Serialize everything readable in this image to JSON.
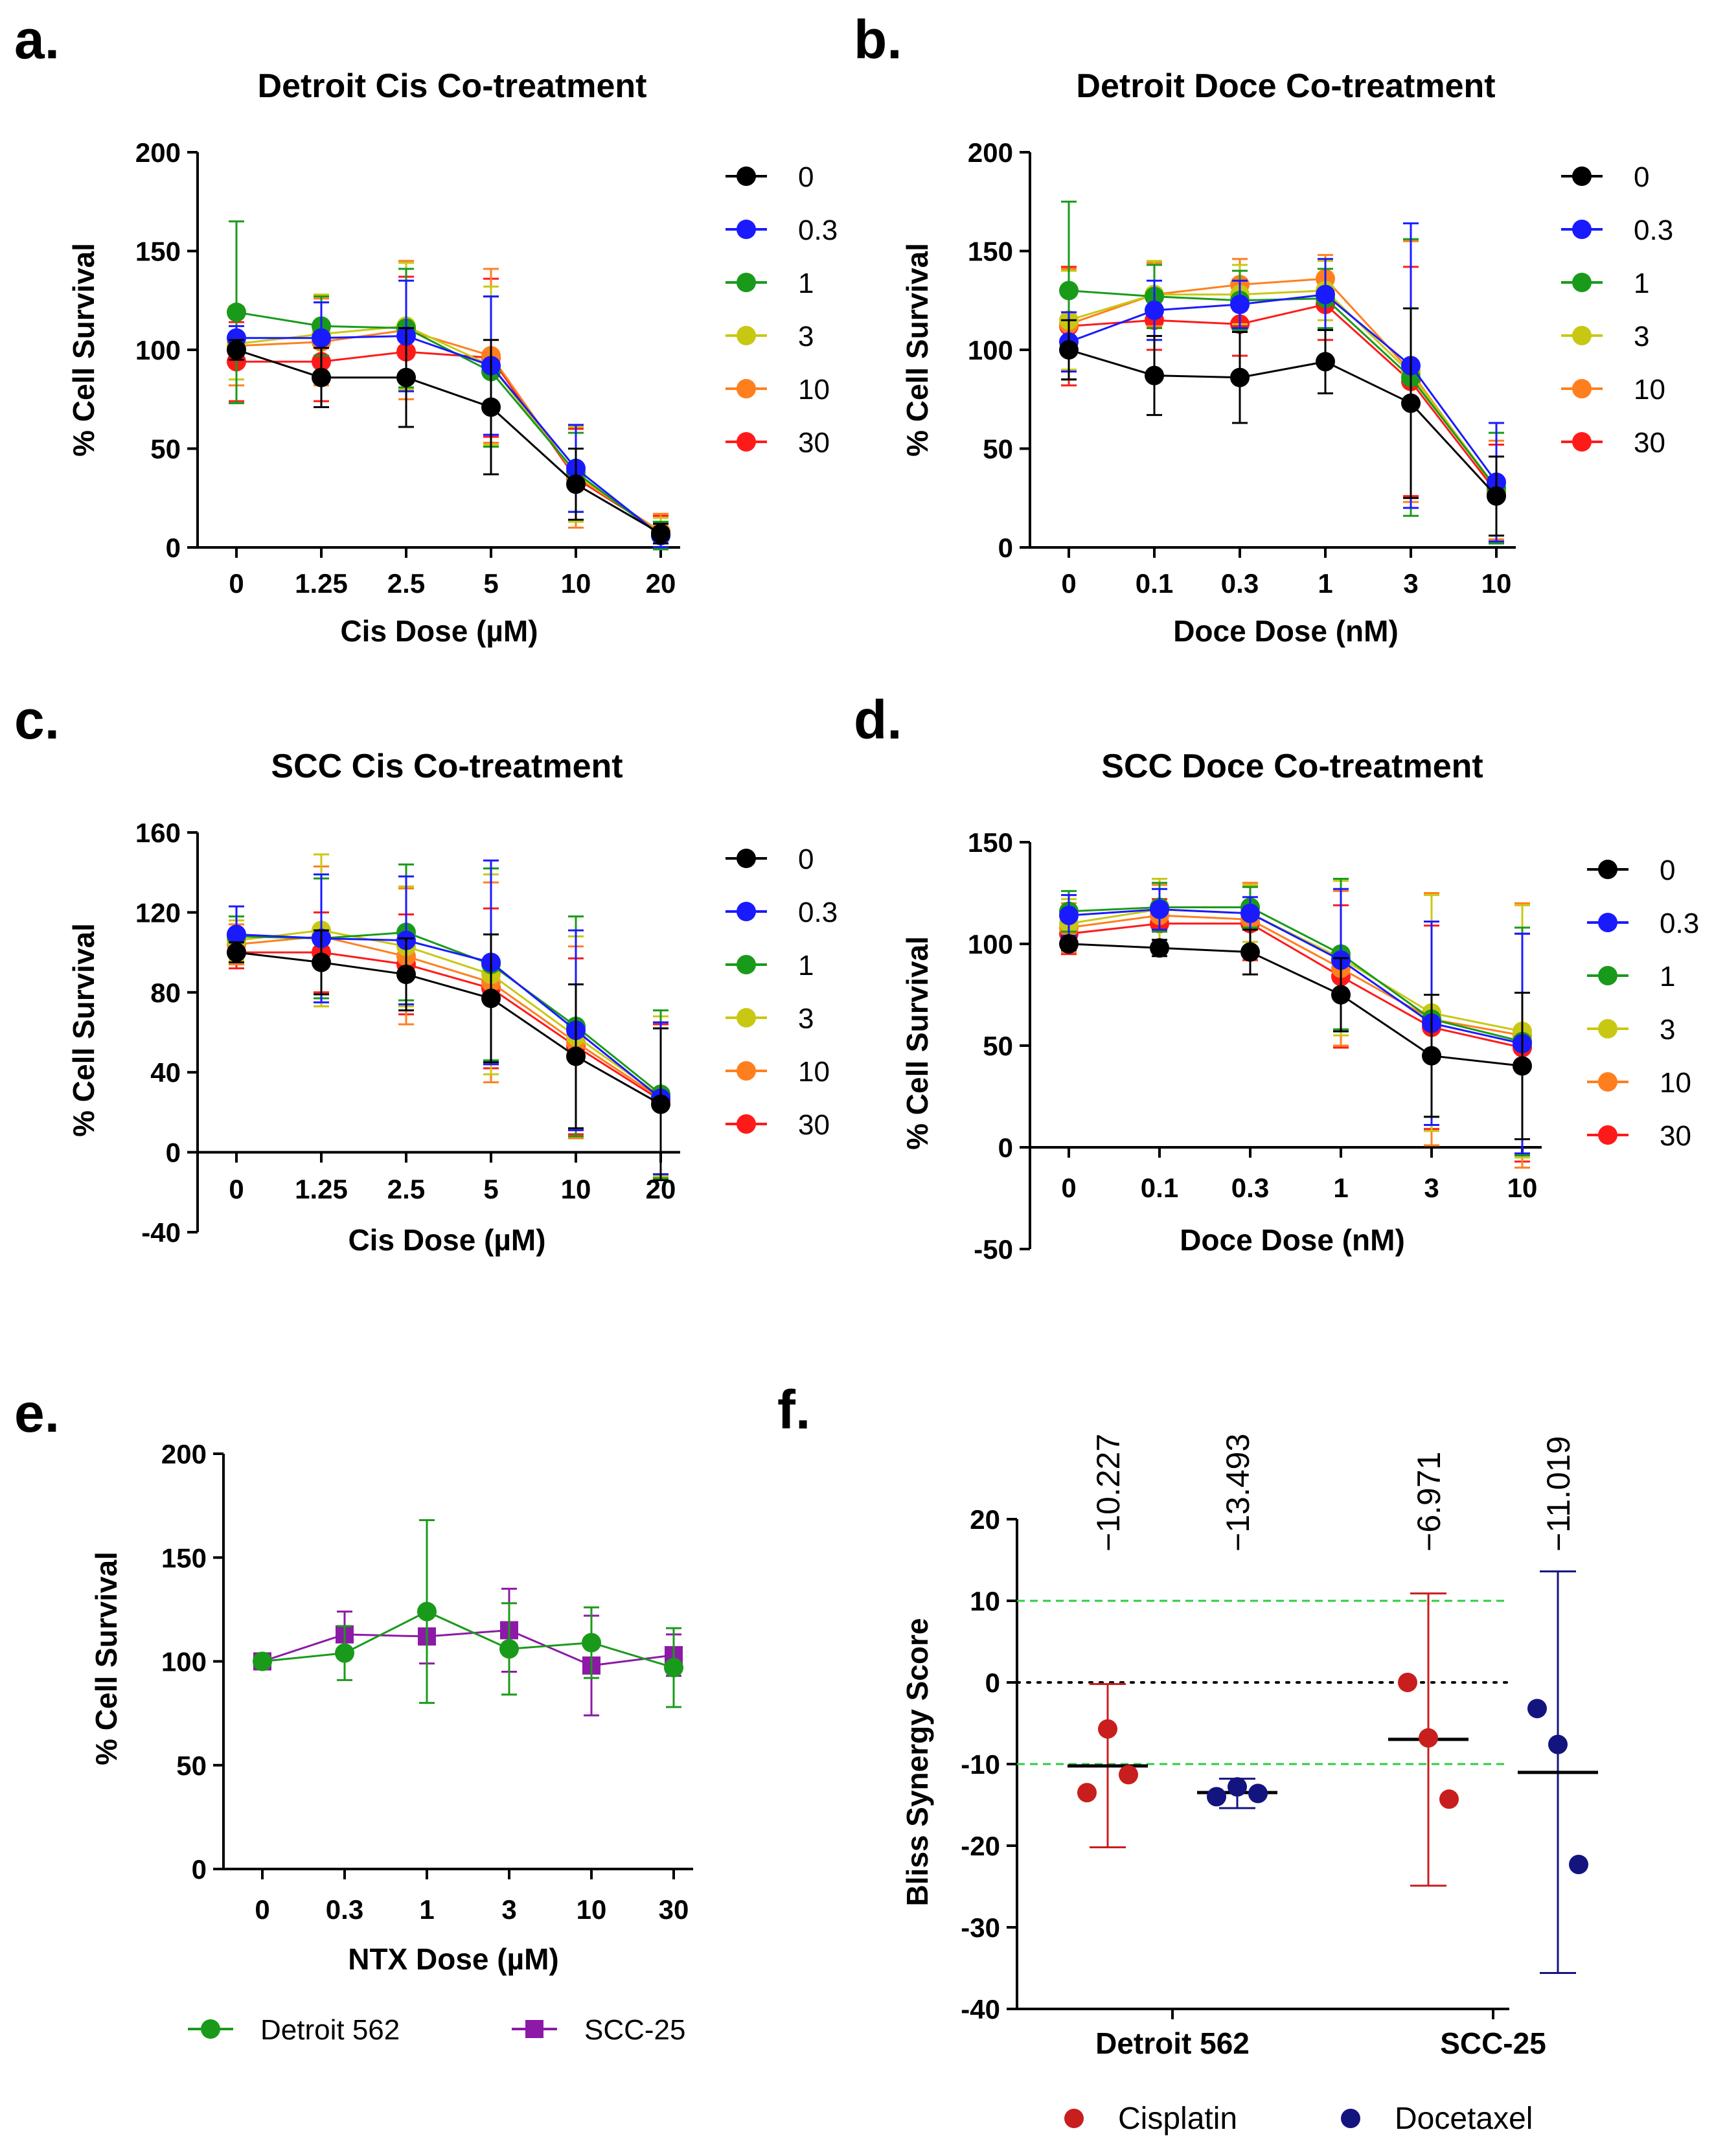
{
  "colors": {
    "0": "#000000",
    "0.3": "#1a1aff",
    "1": "#1a9a1a",
    "3": "#c8c814",
    "10": "#ff7f1e",
    "30": "#ff1a1a",
    "detroit": "#1a9a1a",
    "scc": "#8c1aa6",
    "cisplatin": "#c81e1e",
    "docetaxel": "#14147f",
    "threshold": "#2ecc40"
  },
  "panels": {
    "a": {
      "label": "a."
    },
    "b": {
      "label": "b."
    },
    "c": {
      "label": "c."
    },
    "d": {
      "label": "d."
    },
    "e": {
      "label": "e."
    },
    "f": {
      "label": "f."
    }
  },
  "chart_data": [
    {
      "panel": "a",
      "type": "line",
      "title": "Detroit Cis Co-treatment",
      "xlabel": "Cis Dose (µM)",
      "ylabel": "% Cell Survival",
      "categories": [
        "0",
        "1.25",
        "2.5",
        "5",
        "10",
        "20"
      ],
      "ylim": [
        0,
        200
      ],
      "yticks": [
        0,
        50,
        100,
        150,
        200
      ],
      "legend": [
        "0",
        "0.3",
        "1",
        "3",
        "10",
        "30"
      ],
      "series": [
        {
          "name": "0",
          "values": [
            100,
            86,
            86,
            71,
            32,
            7
          ],
          "errors": [
            5,
            15,
            25,
            34,
            18,
            5
          ]
        },
        {
          "name": "0.3",
          "values": [
            106,
            106,
            107,
            92,
            40,
            6
          ],
          "errors": [
            6,
            18,
            28,
            35,
            22,
            6
          ]
        },
        {
          "name": "1",
          "values": [
            119,
            112,
            111,
            89,
            38,
            6
          ],
          "errors": [
            46,
            15,
            30,
            38,
            20,
            7
          ]
        },
        {
          "name": "3",
          "values": [
            103,
            108,
            112,
            92,
            37,
            7
          ],
          "errors": [
            18,
            20,
            32,
            40,
            24,
            8
          ]
        },
        {
          "name": "10",
          "values": [
            102,
            104,
            110,
            97,
            36,
            8
          ],
          "errors": [
            20,
            22,
            35,
            44,
            26,
            9
          ]
        },
        {
          "name": "30",
          "values": [
            94,
            94,
            99,
            96,
            35,
            8
          ],
          "errors": [
            20,
            20,
            38,
            40,
            25,
            8
          ]
        }
      ]
    },
    {
      "panel": "b",
      "type": "line",
      "title": "Detroit Doce Co-treatment",
      "xlabel": "Doce Dose (nM)",
      "ylabel": "% Cell Survival",
      "categories": [
        "0",
        "0.1",
        "0.3",
        "1",
        "3",
        "10"
      ],
      "ylim": [
        0,
        200
      ],
      "yticks": [
        0,
        50,
        100,
        150,
        200
      ],
      "legend": [
        "0",
        "0.3",
        "1",
        "3",
        "10",
        "30"
      ],
      "series": [
        {
          "name": "0",
          "values": [
            100,
            87,
            86,
            94,
            73,
            26
          ],
          "errors": [
            15,
            20,
            23,
            16,
            48,
            20
          ]
        },
        {
          "name": "0.3",
          "values": [
            104,
            120,
            123,
            128,
            92,
            33
          ],
          "errors": [
            15,
            15,
            12,
            18,
            72,
            30
          ]
        },
        {
          "name": "1",
          "values": [
            130,
            127,
            125,
            126,
            86,
            30
          ],
          "errors": [
            45,
            16,
            15,
            15,
            70,
            28
          ]
        },
        {
          "name": "3",
          "values": [
            115,
            128,
            128,
            130,
            88,
            30
          ],
          "errors": [
            25,
            17,
            15,
            15,
            68,
            28
          ]
        },
        {
          "name": "10",
          "values": [
            113,
            128,
            133,
            136,
            89,
            29
          ],
          "errors": [
            28,
            16,
            13,
            12,
            66,
            25
          ]
        },
        {
          "name": "30",
          "values": [
            112,
            115,
            113,
            123,
            84,
            28
          ],
          "errors": [
            30,
            15,
            16,
            18,
            58,
            24
          ]
        }
      ]
    },
    {
      "panel": "c",
      "type": "line",
      "title": "SCC Cis Co-treatment",
      "xlabel": "Cis Dose (µM)",
      "ylabel": "% Cell Survival",
      "categories": [
        "0",
        "1.25",
        "2.5",
        "5",
        "10",
        "20"
      ],
      "ylim": [
        -40,
        160
      ],
      "yticks": [
        -40,
        0,
        40,
        80,
        120,
        160
      ],
      "legend": [
        "0",
        "0.3",
        "1",
        "3",
        "10",
        "30"
      ],
      "series": [
        {
          "name": "0",
          "values": [
            100,
            95,
            89,
            77,
            48,
            24
          ],
          "errors": [
            5,
            16,
            18,
            32,
            36,
            38
          ]
        },
        {
          "name": "0.3",
          "values": [
            109,
            107,
            106,
            95,
            61,
            27
          ],
          "errors": [
            14,
            32,
            32,
            51,
            50,
            38
          ]
        },
        {
          "name": "1",
          "values": [
            108,
            107,
            110,
            94,
            63,
            29
          ],
          "errors": [
            10,
            30,
            34,
            48,
            55,
            42
          ]
        },
        {
          "name": "3",
          "values": [
            106,
            111,
            103,
            89,
            58,
            28
          ],
          "errors": [
            10,
            38,
            30,
            50,
            50,
            40
          ]
        },
        {
          "name": "10",
          "values": [
            104,
            108,
            98,
            85,
            55,
            27
          ],
          "errors": [
            10,
            35,
            34,
            50,
            48,
            38
          ]
        },
        {
          "name": "30",
          "values": [
            100,
            100,
            94,
            82,
            53,
            26
          ],
          "errors": [
            8,
            20,
            25,
            40,
            44,
            38
          ]
        }
      ]
    },
    {
      "panel": "d",
      "type": "line",
      "title": "SCC Doce Co-treatment",
      "xlabel": "Doce Dose (nM)",
      "ylabel": "% Cell Survival",
      "categories": [
        "0",
        "0.1",
        "0.3",
        "1",
        "3",
        "10"
      ],
      "ylim": [
        -50,
        150
      ],
      "yticks": [
        -50,
        0,
        50,
        100,
        150
      ],
      "legend": [
        "0",
        "0.3",
        "1",
        "3",
        "10",
        "30"
      ],
      "series": [
        {
          "name": "0",
          "values": [
            100,
            98,
            96,
            75,
            45,
            40
          ],
          "errors": [
            3,
            4,
            11,
            18,
            30,
            36
          ]
        },
        {
          "name": "0.3",
          "values": [
            114,
            117,
            115,
            92,
            61,
            51
          ],
          "errors": [
            10,
            10,
            8,
            35,
            50,
            54
          ]
        },
        {
          "name": "1",
          "values": [
            116,
            118,
            118,
            95,
            63,
            52
          ],
          "errors": [
            10,
            12,
            10,
            37,
            48,
            56
          ]
        },
        {
          "name": "3",
          "values": [
            110,
            117,
            115,
            93,
            66,
            57
          ],
          "errors": [
            12,
            15,
            14,
            38,
            58,
            62
          ]
        },
        {
          "name": "10",
          "values": [
            108,
            114,
            112,
            88,
            63,
            55
          ],
          "errors": [
            12,
            15,
            18,
            38,
            62,
            65
          ]
        },
        {
          "name": "30",
          "values": [
            105,
            110,
            110,
            84,
            59,
            49
          ],
          "errors": [
            10,
            12,
            18,
            35,
            50,
            56
          ]
        }
      ]
    },
    {
      "panel": "e",
      "type": "line",
      "title": "",
      "xlabel": "NTX Dose (µM)",
      "ylabel": "% Cell Survival",
      "categories": [
        "0",
        "0.3",
        "1",
        "3",
        "10",
        "30"
      ],
      "ylim": [
        0,
        200
      ],
      "yticks": [
        0,
        50,
        100,
        150,
        200
      ],
      "legend": [
        "Detroit 562",
        "SCC-25"
      ],
      "series": [
        {
          "name": "Detroit 562",
          "marker": "circle",
          "values": [
            100,
            104,
            124,
            106,
            109,
            97
          ],
          "errors": [
            0,
            13,
            44,
            22,
            17,
            19
          ]
        },
        {
          "name": "SCC-25",
          "marker": "square",
          "values": [
            100,
            113,
            112,
            115,
            98,
            103
          ],
          "errors": [
            0,
            11,
            13,
            20,
            24,
            10
          ]
        }
      ]
    },
    {
      "panel": "f",
      "type": "scatter",
      "title": "",
      "xlabel": "",
      "ylabel": "Bliss Synergy Score",
      "categories": [
        "Detroit 562",
        "SCC-25"
      ],
      "ylim": [
        -40,
        20
      ],
      "yticks": [
        -40,
        -30,
        -20,
        -10,
        0,
        10,
        20
      ],
      "reference_lines": [
        10,
        0,
        -10
      ],
      "legend": [
        "Cisplatin",
        "Docetaxel"
      ],
      "groups": [
        {
          "category": "Detroit 562",
          "series": "Cisplatin",
          "points": [
            -13.5,
            -5.7,
            -11.3
          ],
          "mean": -10.227,
          "error_low": -20.2,
          "error_high": -0.2,
          "label": "−10.227"
        },
        {
          "category": "Detroit 562",
          "series": "Docetaxel",
          "points": [
            -14.0,
            -12.8,
            -13.6
          ],
          "mean": -13.493,
          "error_low": -15.4,
          "error_high": -11.8,
          "label": "−13.493"
        },
        {
          "category": "SCC-25",
          "series": "Cisplatin",
          "points": [
            0.0,
            -6.8,
            -14.3
          ],
          "mean": -6.971,
          "error_low": -24.9,
          "error_high": 10.9,
          "label": "−6.971"
        },
        {
          "category": "SCC-25",
          "series": "Docetaxel",
          "points": [
            -3.2,
            -7.6,
            -22.3
          ],
          "mean": -11.019,
          "error_low": -35.6,
          "error_high": 13.6,
          "label": "−11.019"
        }
      ]
    }
  ]
}
